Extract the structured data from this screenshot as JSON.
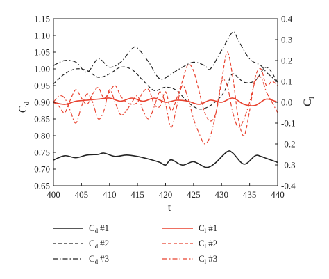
{
  "chart_data": {
    "type": "line",
    "xlabel": "t",
    "ylabel_left": {
      "main": "C",
      "sub": "d"
    },
    "ylabel_right": {
      "main": "C",
      "sub": "l"
    },
    "xlim": [
      400,
      440
    ],
    "ylim_left": [
      0.65,
      1.15
    ],
    "ylim_right": [
      -0.4,
      0.4
    ],
    "x_ticks": [
      400,
      405,
      410,
      415,
      420,
      425,
      430,
      435,
      440
    ],
    "left_ticks": [
      "0.65",
      "0.70",
      "0.75",
      "0.80",
      "0.85",
      "0.90",
      "0.95",
      "1.00",
      "1.05",
      "1.10",
      "1.15"
    ],
    "right_ticks": [
      "0.4",
      "0.3",
      "0.2",
      "0.1",
      "0.0",
      "-0.1",
      "-0.2",
      "-0.3",
      "-0.4"
    ],
    "right_tick_values": [
      0.4,
      0.3,
      0.2,
      0.1,
      0.0,
      -0.1,
      -0.2,
      -0.3,
      -0.4
    ],
    "grid": false,
    "legend_position": "bottom",
    "colors": {
      "cd": "#222222",
      "cl": "#e8412e"
    },
    "series": [
      {
        "name": "#1",
        "label_main": "C",
        "label_sub": "d",
        "axis": "left",
        "style": "solid",
        "color": "#222222",
        "x": [
          400,
          402,
          404,
          406,
          408,
          409,
          411,
          413,
          415,
          417,
          419,
          420,
          421,
          423,
          425,
          427,
          428,
          429,
          431,
          432,
          434,
          436,
          437,
          438,
          440
        ],
        "y": [
          0.727,
          0.74,
          0.734,
          0.742,
          0.744,
          0.748,
          0.738,
          0.742,
          0.738,
          0.73,
          0.72,
          0.712,
          0.728,
          0.712,
          0.722,
          0.706,
          0.708,
          0.72,
          0.752,
          0.748,
          0.715,
          0.74,
          0.738,
          0.732,
          0.72
        ]
      },
      {
        "name": "#2",
        "label_main": "C",
        "label_sub": "d",
        "axis": "left",
        "style": "dashed",
        "color": "#222222",
        "x": [
          400,
          402,
          404,
          406,
          408,
          410,
          412,
          414,
          416,
          418,
          420,
          422,
          424,
          426,
          428,
          430,
          431,
          432,
          434,
          436,
          438,
          440
        ],
        "y": [
          0.955,
          0.985,
          1.0,
          0.995,
          0.975,
          0.985,
          1.005,
          0.998,
          0.965,
          0.935,
          0.945,
          0.935,
          0.9,
          0.88,
          0.89,
          0.92,
          0.95,
          0.985,
          0.96,
          0.965,
          1.005,
          0.96
        ]
      },
      {
        "name": "#3",
        "label_main": "C",
        "label_sub": "d",
        "axis": "left",
        "style": "dashdot",
        "color": "#222222",
        "x": [
          400,
          402,
          404,
          406,
          408,
          410,
          412,
          414,
          415,
          417,
          419,
          421,
          423,
          425,
          427,
          428,
          430,
          432,
          433,
          435,
          437,
          438,
          440
        ],
        "y": [
          1.01,
          1.025,
          1.02,
          0.99,
          1.03,
          1.005,
          1.02,
          1.06,
          1.062,
          1.02,
          0.97,
          0.985,
          1.005,
          1.02,
          1.01,
          1.0,
          1.055,
          1.11,
          1.085,
          1.03,
          1.01,
          0.99,
          0.96
        ]
      },
      {
        "name": "#1",
        "label_main": "C",
        "label_sub": "l",
        "axis": "right",
        "style": "solid",
        "color": "#e8412e",
        "x": [
          400,
          402,
          404,
          406,
          408,
          410,
          412,
          414,
          416,
          418,
          420,
          422,
          424,
          426,
          428,
          430,
          432,
          434,
          436,
          438,
          440
        ],
        "y": [
          0.0,
          -0.01,
          0.005,
          0.01,
          0.015,
          0.02,
          0.005,
          0.02,
          0.005,
          0.02,
          0.0,
          0.01,
          0.005,
          -0.01,
          0.01,
          0.0,
          0.02,
          -0.01,
          -0.015,
          0.015,
          0.0
        ]
      },
      {
        "name": "#2",
        "label_main": "C",
        "label_sub": "l",
        "axis": "right",
        "style": "dashed",
        "color": "#e8412e",
        "x": [
          400,
          401,
          402,
          403,
          404,
          405,
          406,
          407,
          408,
          409,
          410,
          411,
          412,
          413,
          414,
          415,
          416,
          417,
          418,
          419,
          420,
          421,
          422,
          423,
          424,
          425,
          426,
          427,
          428,
          429,
          430,
          431,
          432,
          433,
          434,
          435,
          436,
          437,
          438,
          439,
          440
        ],
        "y": [
          0.0,
          -0.02,
          -0.05,
          0.01,
          0.06,
          0.02,
          -0.01,
          0.04,
          0.07,
          0.02,
          0.05,
          0.08,
          0.03,
          0.0,
          -0.01,
          0.0,
          0.05,
          0.06,
          -0.01,
          -0.02,
          0.05,
          -0.04,
          0.02,
          0.1,
          0.18,
          0.15,
          0.05,
          -0.05,
          -0.09,
          -0.05,
          0.1,
          0.24,
          0.12,
          -0.08,
          -0.16,
          -0.04,
          0.12,
          0.16,
          0.08,
          0.1,
          0.08
        ]
      },
      {
        "name": "#3",
        "label_main": "C",
        "label_sub": "l",
        "axis": "right",
        "style": "dashdot",
        "color": "#e8412e",
        "x": [
          400,
          401,
          402,
          403,
          404,
          405,
          406,
          407,
          408,
          409,
          410,
          411,
          412,
          413,
          414,
          415,
          416,
          417,
          418,
          419,
          420,
          421,
          422,
          423,
          424,
          425,
          426,
          427,
          428,
          429,
          430,
          431,
          432,
          433,
          434,
          435,
          436,
          437,
          438,
          439,
          440
        ],
        "y": [
          0.0,
          0.03,
          0.02,
          -0.04,
          -0.1,
          -0.02,
          0.04,
          0.0,
          -0.08,
          -0.04,
          0.06,
          0.0,
          -0.06,
          -0.04,
          0.0,
          0.03,
          -0.04,
          -0.08,
          -0.02,
          0.05,
          -0.01,
          -0.12,
          -0.02,
          0.08,
          0.02,
          -0.08,
          -0.15,
          -0.2,
          -0.16,
          -0.05,
          0.1,
          0.08,
          -0.05,
          -0.12,
          -0.08,
          0.0,
          0.1,
          0.12,
          0.05,
          0.0,
          -0.05
        ]
      }
    ]
  }
}
